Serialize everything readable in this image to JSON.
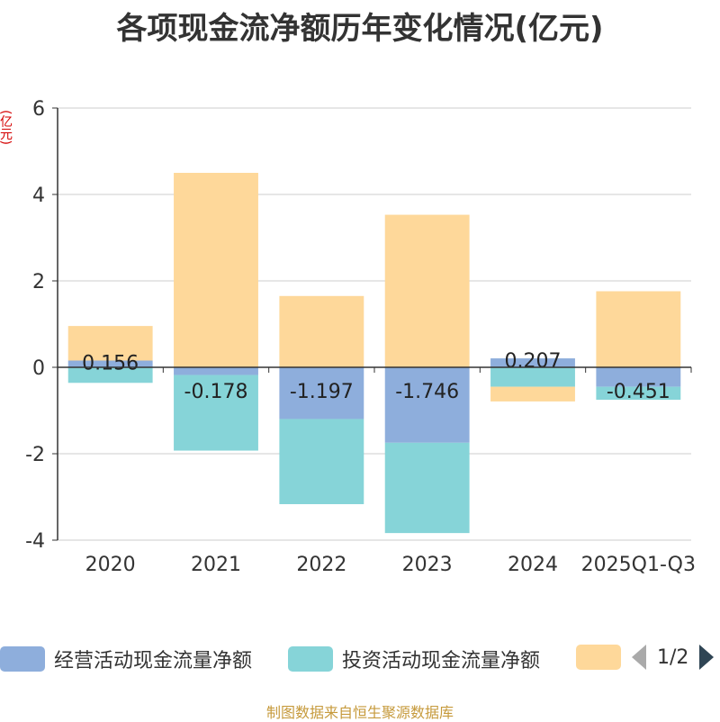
{
  "title": "各项现金流净额历年变化情况(亿元)",
  "unit_label": "(亿元)",
  "footer": "制图数据来自恒生聚源数据库",
  "legend": {
    "items": [
      {
        "label": "经营活动现金流量净额",
        "color": "#8eaedc"
      },
      {
        "label": "投资活动现金流量净额",
        "color": "#86d4d8"
      },
      {
        "label": "",
        "color": "#fed89a"
      }
    ],
    "page_indicator": "1/2"
  },
  "chart_data": {
    "type": "bar",
    "stacked": true,
    "categories": [
      "2020",
      "2021",
      "2022",
      "2023",
      "2024",
      "2025Q1-Q3"
    ],
    "ylim": [
      -4,
      6
    ],
    "yticks": [
      6,
      4,
      2,
      0,
      -2,
      -4
    ],
    "grid": true,
    "series": [
      {
        "name": "经营活动现金流量净额",
        "color": "#8eaedc",
        "values": [
          0.156,
          -0.178,
          -1.197,
          -1.746,
          0.207,
          -0.451
        ],
        "labels": [
          "0.156",
          "-0.178",
          "-1.197",
          "-1.746",
          "0.207",
          "-0.451"
        ]
      },
      {
        "name": "投资活动现金流量净额",
        "color": "#86d4d8",
        "values": [
          -0.36,
          -1.75,
          -1.97,
          -2.09,
          -0.45,
          -0.3
        ]
      },
      {
        "name": "",
        "color": "#fed89a",
        "values": [
          0.8,
          4.5,
          1.65,
          3.53,
          -0.34,
          1.76
        ]
      }
    ]
  }
}
